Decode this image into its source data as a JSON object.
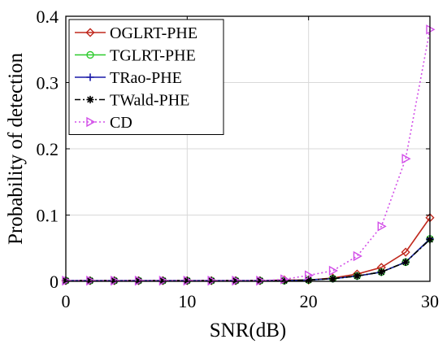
{
  "chart_data": {
    "type": "line",
    "title": "",
    "xlabel": "SNR(dB)",
    "ylabel": "Probability of detection",
    "xlim": [
      0,
      30
    ],
    "ylim": [
      0,
      0.4
    ],
    "xticks": [
      0,
      10,
      20,
      30
    ],
    "xtick_labels": [
      "0",
      "10",
      "20",
      "30"
    ],
    "yticks": [
      0,
      0.1,
      0.2,
      0.3,
      0.4
    ],
    "ytick_labels": [
      "0",
      "0.1",
      "0.2",
      "0.3",
      "0.4"
    ],
    "grid": true,
    "legend_position": "top-left",
    "x": [
      0,
      2,
      4,
      6,
      8,
      10,
      12,
      14,
      16,
      18,
      20,
      22,
      24,
      26,
      28,
      30
    ],
    "series": [
      {
        "name": "OGLRT-PHE",
        "color": "#c0281d",
        "marker": "diamond",
        "dash": "solid",
        "values": [
          0.001,
          0.001,
          0.001,
          0.001,
          0.001,
          0.001,
          0.001,
          0.001,
          0.001,
          0.002,
          0.002,
          0.005,
          0.011,
          0.021,
          0.044,
          0.096
        ]
      },
      {
        "name": "TGLRT-PHE",
        "color": "#2ecc2e",
        "marker": "circle",
        "dash": "solid",
        "values": [
          0.001,
          0.001,
          0.001,
          0.001,
          0.001,
          0.001,
          0.001,
          0.001,
          0.001,
          0.001,
          0.002,
          0.004,
          0.008,
          0.014,
          0.029,
          0.064
        ]
      },
      {
        "name": "TRao-PHE",
        "color": "#1a1aa8",
        "marker": "plus",
        "dash": "solid",
        "values": [
          0.001,
          0.001,
          0.001,
          0.001,
          0.001,
          0.001,
          0.001,
          0.001,
          0.001,
          0.001,
          0.002,
          0.004,
          0.008,
          0.014,
          0.029,
          0.064
        ]
      },
      {
        "name": "TWald-PHE",
        "color": "#000000",
        "marker": "asterisk",
        "dash": "dashdot",
        "values": [
          0.001,
          0.001,
          0.001,
          0.001,
          0.001,
          0.001,
          0.001,
          0.001,
          0.001,
          0.001,
          0.002,
          0.004,
          0.008,
          0.014,
          0.029,
          0.063
        ]
      },
      {
        "name": "CD",
        "color": "#d24ee8",
        "marker": "triangle-right",
        "dash": "dotted",
        "values": [
          0.001,
          0.001,
          0.001,
          0.001,
          0.001,
          0.001,
          0.001,
          0.001,
          0.001,
          0.003,
          0.009,
          0.016,
          0.038,
          0.083,
          0.185,
          0.38
        ]
      }
    ]
  }
}
